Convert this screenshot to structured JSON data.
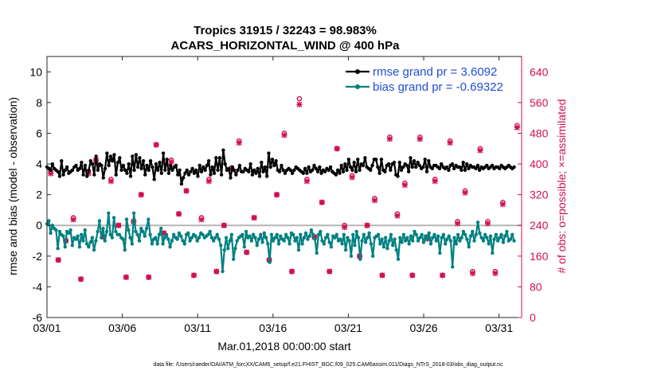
{
  "chart_data": {
    "type": "line",
    "title": [
      "Tropics 31915 / 32243 = 98.983%",
      "ACARS_HORIZONTAL_WIND @ 400 hPa"
    ],
    "xlabel": "Mar.01,2018 00:00:00 start",
    "ylabel_left": "rmse and bias (model - observation)",
    "ylabel_right": "# of obs: o=possible; ×=assimilated",
    "footnote": "data file: /Users/raeder/DAI/ATM_forcXX/CAM6_setup/f.e21.FHIST_BGC.f09_025.CAM6assim.011/Diags_NTrS_2018-03/obs_diag_output.nc",
    "xlim": [
      0,
      31.5
    ],
    "ylim_left": [
      -6,
      11
    ],
    "ylim_right": [
      0,
      680
    ],
    "x_ticks": [
      0,
      5,
      10,
      15,
      20,
      25,
      30
    ],
    "x_ticklabels": [
      "03/01",
      "03/06",
      "03/11",
      "03/16",
      "03/21",
      "03/26",
      "03/31"
    ],
    "y_ticks_left": [
      -6,
      -4,
      -2,
      0,
      2,
      4,
      6,
      8,
      10
    ],
    "y_ticklabels_left": [
      "-6",
      "-4",
      "-2",
      "0",
      "2",
      "4",
      "6",
      "8",
      "10"
    ],
    "y_ticks_right": [
      0,
      80,
      160,
      240,
      320,
      400,
      480,
      560,
      640
    ],
    "y_ticklabels_right": [
      "0",
      "80",
      "160",
      "240",
      "320",
      "400",
      "480",
      "560",
      "640"
    ],
    "legend": [
      "rmse grand pr = 3.6092",
      "bias grand pr = -0.69322"
    ],
    "legend_position": "top-right",
    "series": [
      {
        "name": "rmse",
        "color": "#000000",
        "values": [
          3.8,
          3.7,
          3.6,
          4.0,
          3.7,
          3.6,
          3.5,
          3.2,
          4.2,
          3.3,
          3.6,
          3.8,
          3.4,
          3.5,
          3.6,
          3.8,
          3.9,
          3.6,
          3.7,
          4.1,
          3.3,
          3.9,
          3.2,
          3.6,
          4.2,
          4.0,
          3.3,
          4.5,
          3.6,
          4.0,
          3.9,
          3.1,
          3.7,
          4.7,
          3.9,
          4.5,
          4.2,
          4.6,
          3.3,
          4.1,
          4.4,
          3.6,
          3.9,
          3.6,
          3.4,
          4.0,
          3.2,
          4.5,
          3.6,
          4.6,
          3.8,
          4.4,
          3.7,
          4.2,
          3.3,
          3.9,
          3.6,
          4.2,
          3.8,
          3.0,
          4.0,
          3.6,
          4.1,
          3.4,
          4.7,
          3.6,
          4.3,
          3.4,
          3.9,
          3.6,
          3.8,
          3.9,
          3.3,
          3.6,
          2.7,
          3.1,
          3.4,
          3.6,
          3.3,
          3.5,
          3.7,
          3.4,
          3.6,
          3.2,
          3.9,
          3.5,
          3.8,
          3.6,
          3.9,
          4.2,
          3.3,
          3.8,
          3.4,
          4.4,
          3.6,
          4.4,
          3.3,
          4.9,
          4.0,
          3.6,
          3.7,
          3.1,
          3.8,
          3.6,
          3.3,
          3.6,
          3.9,
          3.5,
          3.5,
          3.7,
          3.6,
          3.5,
          4.0,
          3.3,
          3.6,
          3.4,
          3.7,
          3.2,
          4.1,
          3.5,
          3.8,
          3.2,
          4.7,
          3.8,
          4.3,
          3.9,
          4.2,
          3.6,
          3.5,
          3.9,
          3.6,
          3.4,
          3.6,
          3.7,
          3.6,
          3.4,
          3.6,
          3.8,
          3.7,
          3.6,
          3.5,
          3.4,
          3.7,
          3.4,
          3.8,
          3.5,
          3.6,
          3.9,
          3.7,
          3.5,
          3.8,
          3.4,
          3.6,
          3.5,
          3.7,
          3.6,
          3.8,
          3.5,
          3.4,
          3.3,
          3.6,
          3.4,
          3.9,
          3.5,
          4.0,
          3.6,
          4.3,
          3.8,
          3.6,
          4.1,
          3.5,
          4.3,
          3.6,
          4.0,
          3.9,
          4.4,
          3.8,
          3.7,
          3.6,
          3.9,
          4.3,
          4.3,
          3.8,
          3.4,
          4.3,
          3.6,
          3.5,
          3.9,
          4.0,
          3.6,
          4.0,
          4.1,
          3.3,
          3.2,
          4.1,
          3.6,
          3.8,
          4.0,
          3.9,
          3.5,
          4.4,
          3.8,
          4.2,
          3.8,
          4.1,
          3.9,
          3.7,
          3.8,
          4.3,
          3.5,
          4.2,
          3.8,
          3.7,
          3.9,
          3.9,
          3.8,
          3.7,
          4.0,
          3.8,
          3.7,
          3.8,
          3.6,
          3.9,
          4.0,
          3.7,
          3.9,
          3.8,
          3.8,
          3.6,
          4.1,
          3.6,
          4.0,
          3.7,
          3.9,
          3.8,
          3.8,
          3.7,
          3.9,
          3.6,
          3.8,
          3.7,
          3.8,
          3.9,
          3.7,
          3.8,
          3.9,
          3.7,
          3.8,
          3.8,
          3.7,
          3.9,
          3.8,
          3.7,
          3.8,
          3.9,
          3.8,
          3.7,
          3.8
        ]
      },
      {
        "name": "bias",
        "color": "#008080",
        "values": [
          0.1,
          0.3,
          -0.5,
          0.0,
          -0.2,
          -0.3,
          -1.5,
          -0.4,
          -0.6,
          -0.7,
          -1.4,
          -0.4,
          -0.5,
          -0.3,
          -1.3,
          -0.8,
          -0.9,
          -0.7,
          -1.4,
          -0.6,
          -1.0,
          -0.3,
          -1.2,
          -1.4,
          -1.1,
          -0.8,
          -1.6,
          -1.0,
          -0.4,
          0.3,
          -0.8,
          -0.2,
          -1.0,
          -0.4,
          0.8,
          -0.6,
          -0.8,
          0.5,
          -0.4,
          -0.6,
          -0.6,
          -0.8,
          -0.9,
          -1.6,
          0.4,
          -0.3,
          -0.8,
          -1.2,
          0.8,
          -0.4,
          -0.6,
          -1.0,
          -0.2,
          -0.4,
          -0.7,
          -0.2,
          0.4,
          -0.6,
          -1.2,
          -0.9,
          -0.8,
          -1.2,
          -0.6,
          -0.2,
          -1.2,
          -0.8,
          -0.6,
          -0.9,
          -1.4,
          -1.0,
          -0.6,
          -0.8,
          -0.9,
          -0.5,
          -0.7,
          -1.0,
          -1.2,
          -0.6,
          -0.5,
          -1.0,
          -0.8,
          -0.6,
          -0.7,
          -1.0,
          -0.8,
          -0.5,
          -0.6,
          -0.8,
          -0.7,
          -0.6,
          -0.4,
          -0.8,
          -1.0,
          -0.8,
          -0.6,
          -0.9,
          -1.3,
          -3.0,
          -1.6,
          -0.8,
          -1.5,
          -1.0,
          -0.6,
          -2.2,
          -1.5,
          -1.0,
          -0.8,
          -0.7,
          -0.6,
          -1.4,
          -0.4,
          -0.8,
          -0.7,
          -1.0,
          -0.6,
          -0.8,
          -1.3,
          -0.9,
          -0.6,
          -1.1,
          -0.5,
          -0.8,
          -1.2,
          -2.4,
          -0.6,
          -1.0,
          -0.8,
          -0.6,
          -1.2,
          -0.7,
          -0.9,
          -1.0,
          -0.6,
          -0.8,
          -1.2,
          -0.5,
          -0.6,
          -1.0,
          -0.8,
          -1.6,
          -0.6,
          -1.2,
          -0.8,
          -0.5,
          -0.9,
          -0.7,
          -0.3,
          -0.6,
          -0.9,
          -1.8,
          -0.6,
          -0.4,
          -1.0,
          -1.2,
          -0.8,
          -0.6,
          -1.1,
          -1.4,
          -0.7,
          -0.8,
          -0.6,
          -1.0,
          -0.9,
          -1.2,
          -0.6,
          -1.6,
          -0.8,
          -1.0,
          -2.0,
          -0.6,
          -1.3,
          -0.4,
          -0.8,
          -2.2,
          -1.0,
          -0.6,
          -1.1,
          -0.8,
          -0.5,
          -1.2,
          -2.0,
          -0.8,
          -0.7,
          -0.6,
          -1.2,
          -0.9,
          -1.4,
          -0.8,
          -1.5,
          -1.0,
          -0.6,
          -1.3,
          -0.9,
          -1.6,
          -2.2,
          -0.8,
          -1.1,
          -0.6,
          -1.0,
          -0.8,
          -1.2,
          -0.7,
          -1.0,
          -0.4,
          -0.6,
          -1.0,
          -0.8,
          -0.6,
          -1.1,
          -0.7,
          -0.9,
          -0.5,
          -1.2,
          -0.8,
          -0.6,
          -1.0,
          -0.7,
          -1.8,
          -0.8,
          -0.6,
          -1.2,
          -0.9,
          -0.7,
          -1.0,
          -2.7,
          -0.8,
          -1.2,
          -0.6,
          -1.0,
          -0.8,
          -0.4,
          -0.6,
          -0.9,
          -1.4,
          -0.7,
          -0.4,
          -1.0,
          -0.6,
          0.2,
          -0.5,
          -0.8,
          -1.0,
          -0.6,
          -0.8,
          -1.2,
          -0.7,
          -1.8,
          -0.9,
          -0.6,
          -1.0,
          -0.8,
          -0.6,
          -1.1,
          -0.7,
          -0.4,
          -1.0,
          -0.9,
          -0.6,
          -1.0
        ]
      }
    ],
    "obs_possible": [
      [
        0.25,
        380
      ],
      [
        0.75,
        150
      ],
      [
        1.25,
        200
      ],
      [
        1.75,
        260
      ],
      [
        2.25,
        100
      ],
      [
        2.75,
        380
      ],
      [
        3.25,
        410
      ],
      [
        3.75,
        210
      ],
      [
        4.25,
        360
      ],
      [
        4.75,
        240
      ],
      [
        5.25,
        105
      ],
      [
        5.75,
        250
      ],
      [
        6.25,
        320
      ],
      [
        6.75,
        105
      ],
      [
        7.25,
        450
      ],
      [
        7.75,
        220
      ],
      [
        8.25,
        410
      ],
      [
        8.75,
        270
      ],
      [
        9.25,
        330
      ],
      [
        9.75,
        110
      ],
      [
        10.25,
        260
      ],
      [
        10.75,
        360
      ],
      [
        11.25,
        120
      ],
      [
        11.75,
        240
      ],
      [
        12.25,
        390
      ],
      [
        12.75,
        460
      ],
      [
        13.25,
        170
      ],
      [
        13.75,
        260
      ],
      [
        14.75,
        150
      ],
      [
        15.25,
        320
      ],
      [
        15.75,
        480
      ],
      [
        16.25,
        120
      ],
      [
        16.75,
        570
      ],
      [
        17.25,
        360
      ],
      [
        17.75,
        210
      ],
      [
        18.25,
        300
      ],
      [
        18.75,
        120
      ],
      [
        19.25,
        440
      ],
      [
        19.75,
        240
      ],
      [
        20.25,
        370
      ],
      [
        20.75,
        160
      ],
      [
        21.25,
        240
      ],
      [
        21.75,
        310
      ],
      [
        22.25,
        110
      ],
      [
        22.75,
        470
      ],
      [
        23.25,
        270
      ],
      [
        23.75,
        350
      ],
      [
        24.25,
        110
      ],
      [
        24.75,
        470
      ],
      [
        25.25,
        210
      ],
      [
        25.75,
        360
      ],
      [
        26.25,
        110
      ],
      [
        26.75,
        460
      ],
      [
        27.25,
        250
      ],
      [
        27.75,
        330
      ],
      [
        28.25,
        120
      ],
      [
        28.75,
        440
      ],
      [
        29.25,
        250
      ],
      [
        29.75,
        120
      ],
      [
        30.25,
        300
      ],
      [
        31.2,
        500
      ]
    ],
    "obs_assimilated": [
      [
        0.25,
        375
      ],
      [
        0.75,
        150
      ],
      [
        1.25,
        200
      ],
      [
        1.75,
        255
      ],
      [
        2.25,
        100
      ],
      [
        2.75,
        375
      ],
      [
        3.25,
        410
      ],
      [
        3.75,
        210
      ],
      [
        4.25,
        355
      ],
      [
        4.75,
        240
      ],
      [
        5.25,
        105
      ],
      [
        5.75,
        250
      ],
      [
        6.25,
        320
      ],
      [
        6.75,
        105
      ],
      [
        7.25,
        450
      ],
      [
        7.75,
        220
      ],
      [
        8.25,
        405
      ],
      [
        8.75,
        270
      ],
      [
        9.25,
        330
      ],
      [
        9.75,
        110
      ],
      [
        10.25,
        255
      ],
      [
        10.75,
        355
      ],
      [
        11.25,
        120
      ],
      [
        11.75,
        240
      ],
      [
        12.25,
        385
      ],
      [
        12.75,
        455
      ],
      [
        13.25,
        170
      ],
      [
        13.75,
        260
      ],
      [
        14.75,
        150
      ],
      [
        15.25,
        320
      ],
      [
        15.75,
        475
      ],
      [
        16.25,
        120
      ],
      [
        16.75,
        555
      ],
      [
        17.25,
        355
      ],
      [
        17.75,
        210
      ],
      [
        18.25,
        300
      ],
      [
        18.75,
        120
      ],
      [
        19.25,
        440
      ],
      [
        19.75,
        235
      ],
      [
        20.25,
        365
      ],
      [
        20.75,
        160
      ],
      [
        21.25,
        240
      ],
      [
        21.75,
        305
      ],
      [
        22.25,
        110
      ],
      [
        22.75,
        465
      ],
      [
        23.25,
        265
      ],
      [
        23.75,
        345
      ],
      [
        24.25,
        110
      ],
      [
        24.75,
        465
      ],
      [
        25.25,
        205
      ],
      [
        25.75,
        355
      ],
      [
        26.25,
        110
      ],
      [
        26.75,
        455
      ],
      [
        27.25,
        245
      ],
      [
        27.75,
        325
      ],
      [
        28.25,
        115
      ],
      [
        28.75,
        435
      ],
      [
        29.25,
        245
      ],
      [
        29.75,
        115
      ],
      [
        30.25,
        295
      ],
      [
        31.2,
        495
      ]
    ]
  }
}
